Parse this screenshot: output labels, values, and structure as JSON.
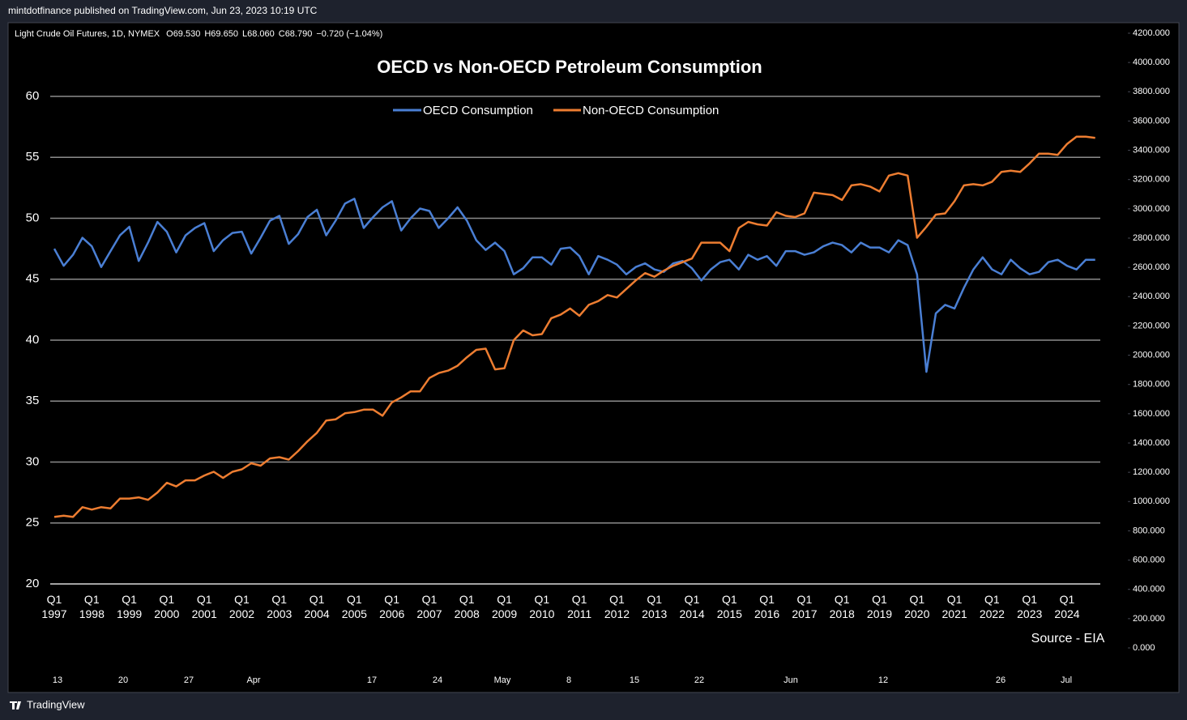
{
  "header": {
    "text": "mintdotfinance published on TradingView.com, Jun 23, 2023 10:19 UTC"
  },
  "symbol_bar": {
    "name": "Light Crude Oil Futures, 1D, NYMEX",
    "ohlc": [
      {
        "label": "O",
        "value": "69.530"
      },
      {
        "label": "H",
        "value": "69.650"
      },
      {
        "label": "L",
        "value": "68.060"
      },
      {
        "label": "C",
        "value": "68.790"
      }
    ],
    "change": "−0.720 (−1.04%)"
  },
  "chart_data": {
    "type": "line",
    "title": "OECD vs Non-OECD Petroleum Consumption",
    "annotation": "Source - EIA",
    "categories": [
      "Q1 1997",
      null,
      null,
      null,
      "Q1 1998",
      null,
      null,
      null,
      "Q1 1999",
      null,
      null,
      null,
      "Q1 2000",
      null,
      null,
      null,
      "Q1 2001",
      null,
      null,
      null,
      "Q1 2002",
      null,
      null,
      null,
      "Q1 2003",
      null,
      null,
      null,
      "Q1 2004",
      null,
      null,
      null,
      "Q1 2005",
      null,
      null,
      null,
      "Q1 2006",
      null,
      null,
      null,
      "Q1 2007",
      null,
      null,
      null,
      "Q1 2008",
      null,
      null,
      null,
      "Q1 2009",
      null,
      null,
      null,
      "Q1 2010",
      null,
      null,
      null,
      "Q1 2011",
      null,
      null,
      null,
      "Q1 2012",
      null,
      null,
      null,
      "Q1 2013",
      null,
      null,
      null,
      "Q1 2014",
      null,
      null,
      null,
      "Q1 2015",
      null,
      null,
      null,
      "Q1 2016",
      null,
      null,
      null,
      "Q1 2017",
      null,
      null,
      null,
      "Q1 2018",
      null,
      null,
      null,
      "Q1 2019",
      null,
      null,
      null,
      "Q1 2020",
      null,
      null,
      null,
      "Q1 2021",
      null,
      null,
      null,
      "Q1 2022",
      null,
      null,
      null,
      "Q1 2023",
      null,
      null,
      null,
      "Q1 2024",
      null,
      null,
      null
    ],
    "series": [
      {
        "name": "OECD Consumption",
        "color": "#4a7fd4",
        "values": [
          47.5,
          46.1,
          47.0,
          48.4,
          47.7,
          46.0,
          47.3,
          48.6,
          49.3,
          46.5,
          48.0,
          49.7,
          48.9,
          47.2,
          48.6,
          49.2,
          49.6,
          47.3,
          48.2,
          48.8,
          48.9,
          47.1,
          48.4,
          49.8,
          50.2,
          47.9,
          48.7,
          50.1,
          50.7,
          48.6,
          49.8,
          51.2,
          51.6,
          49.2,
          50.1,
          50.9,
          51.4,
          49.0,
          50.0,
          50.8,
          50.6,
          49.2,
          50.0,
          50.9,
          49.8,
          48.2,
          47.4,
          48.0,
          47.3,
          45.4,
          45.9,
          46.8,
          46.8,
          46.2,
          47.5,
          47.6,
          46.9,
          45.4,
          46.9,
          46.6,
          46.2,
          45.4,
          46.0,
          46.3,
          45.8,
          45.6,
          46.3,
          46.5,
          45.9,
          44.9,
          45.8,
          46.4,
          46.6,
          45.8,
          47.0,
          46.6,
          46.9,
          46.1,
          47.3,
          47.3,
          47.0,
          47.2,
          47.7,
          48.0,
          47.8,
          47.2,
          48.0,
          47.6,
          47.6,
          47.2,
          48.2,
          47.8,
          45.4,
          37.4,
          42.2,
          42.9,
          42.6,
          44.3,
          45.8,
          46.8,
          45.8,
          45.4,
          46.6,
          45.9,
          45.4,
          45.6,
          46.4,
          46.6,
          46.1,
          45.8,
          46.6,
          46.6
        ]
      },
      {
        "name": "Non-OECD Consumption",
        "color": "#ed7d31",
        "values": [
          25.5,
          25.6,
          25.5,
          26.3,
          26.1,
          26.3,
          26.2,
          27.0,
          27.0,
          27.1,
          26.9,
          27.5,
          28.3,
          28.0,
          28.5,
          28.5,
          28.9,
          29.2,
          28.7,
          29.2,
          29.4,
          29.9,
          29.7,
          30.3,
          30.4,
          30.2,
          30.9,
          31.7,
          32.4,
          33.4,
          33.5,
          34.0,
          34.1,
          34.3,
          34.3,
          33.8,
          34.9,
          35.3,
          35.8,
          35.8,
          36.9,
          37.3,
          37.5,
          37.9,
          38.6,
          39.2,
          39.3,
          37.6,
          37.7,
          40.0,
          40.8,
          40.4,
          40.5,
          41.8,
          42.1,
          42.6,
          42.0,
          42.9,
          43.2,
          43.7,
          43.5,
          44.2,
          44.9,
          45.5,
          45.2,
          45.7,
          46.1,
          46.4,
          46.7,
          48.0,
          48.0,
          48.0,
          47.3,
          49.2,
          49.7,
          49.5,
          49.4,
          50.5,
          50.2,
          50.1,
          50.4,
          52.1,
          52.0,
          51.9,
          51.5,
          52.7,
          52.8,
          52.6,
          52.2,
          53.5,
          53.7,
          53.5,
          48.4,
          49.3,
          50.3,
          50.4,
          51.4,
          52.7,
          52.8,
          52.7,
          53.0,
          53.8,
          53.9,
          53.8,
          54.5,
          55.3,
          55.3,
          55.2,
          56.1,
          56.7,
          56.7,
          56.6
        ]
      }
    ],
    "ylim": [
      20,
      60
    ],
    "yticks": [
      20,
      25,
      30,
      35,
      40,
      45,
      50,
      55,
      60
    ],
    "grid": true,
    "legend": "top"
  },
  "price_scale": {
    "lim": [
      0,
      4200
    ],
    "ticks": [
      {
        "value": 0,
        "label": "0.000"
      },
      {
        "value": 200,
        "label": "200.000"
      },
      {
        "value": 400,
        "label": "400.000"
      },
      {
        "value": 600,
        "label": "600.000"
      },
      {
        "value": 800,
        "label": "800.000"
      },
      {
        "value": 1000,
        "label": "1000.000"
      },
      {
        "value": 1200,
        "label": "1200.000"
      },
      {
        "value": 1400,
        "label": "1400.000"
      },
      {
        "value": 1600,
        "label": "1600.000"
      },
      {
        "value": 1800,
        "label": "1800.000"
      },
      {
        "value": 2000,
        "label": "2000.000"
      },
      {
        "value": 2200,
        "label": "2200.000"
      },
      {
        "value": 2400,
        "label": "2400.000"
      },
      {
        "value": 2600,
        "label": "2600.000"
      },
      {
        "value": 2800,
        "label": "2800.000"
      },
      {
        "value": 3000,
        "label": "3000.000"
      },
      {
        "value": 3200,
        "label": "3200.000"
      },
      {
        "value": 3400,
        "label": "3400.000"
      },
      {
        "value": 3600,
        "label": "3600.000"
      },
      {
        "value": 3800,
        "label": "3800.000"
      },
      {
        "value": 4000,
        "label": "4000.000"
      },
      {
        "value": 4200,
        "label": "4200.000"
      }
    ]
  },
  "time_axis": {
    "labels": [
      "13",
      "20",
      "27",
      "Apr",
      "17",
      "24",
      "May",
      "8",
      "15",
      "22",
      "Jun",
      "12",
      "26",
      "Jul"
    ]
  },
  "footer": {
    "brand": "TradingView"
  }
}
